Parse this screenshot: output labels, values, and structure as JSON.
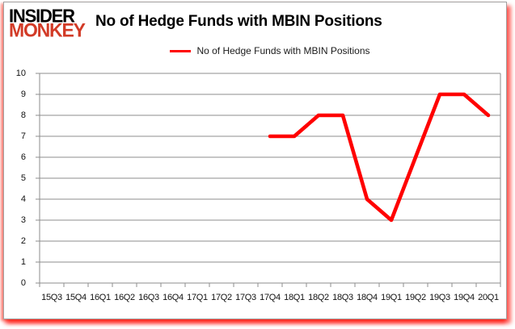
{
  "logo": {
    "line1": "INSIDER",
    "line2": "MONKEY"
  },
  "header": {
    "title": "No of Hedge Funds with MBIN Positions"
  },
  "legend": {
    "label": "No of Hedge Funds with MBIN Positions",
    "line_color": "#ff0000"
  },
  "chart_data": {
    "type": "line",
    "title": "No of Hedge Funds with MBIN Positions",
    "categories": [
      "15Q3",
      "15Q4",
      "16Q1",
      "16Q2",
      "16Q3",
      "16Q4",
      "17Q1",
      "17Q2",
      "17Q3",
      "17Q4",
      "18Q1",
      "18Q2",
      "18Q3",
      "18Q4",
      "19Q1",
      "19Q2",
      "19Q3",
      "19Q4",
      "20Q1"
    ],
    "series": [
      {
        "name": "No of Hedge Funds with MBIN Positions",
        "color": "#ff0000",
        "values": [
          null,
          null,
          null,
          null,
          null,
          null,
          null,
          null,
          null,
          7,
          7,
          8,
          8,
          4,
          3,
          6,
          9,
          9,
          8
        ]
      }
    ],
    "xlabel": "",
    "ylabel": "",
    "ylim": [
      0,
      10
    ],
    "ytick_step": 1,
    "yticks": [
      0,
      1,
      2,
      3,
      4,
      5,
      6,
      7,
      8,
      9,
      10
    ],
    "grid": "horizontal",
    "legend_position": "top-center"
  },
  "colors": {
    "line": "#ff0000",
    "grid": "#8e8e8e",
    "axis": "#8e8e8e",
    "text": "#111111",
    "logo_black": "#000000",
    "logo_red": "#d23b27",
    "panel_border": "#a0a0a0",
    "shadow": "#ff0000"
  }
}
